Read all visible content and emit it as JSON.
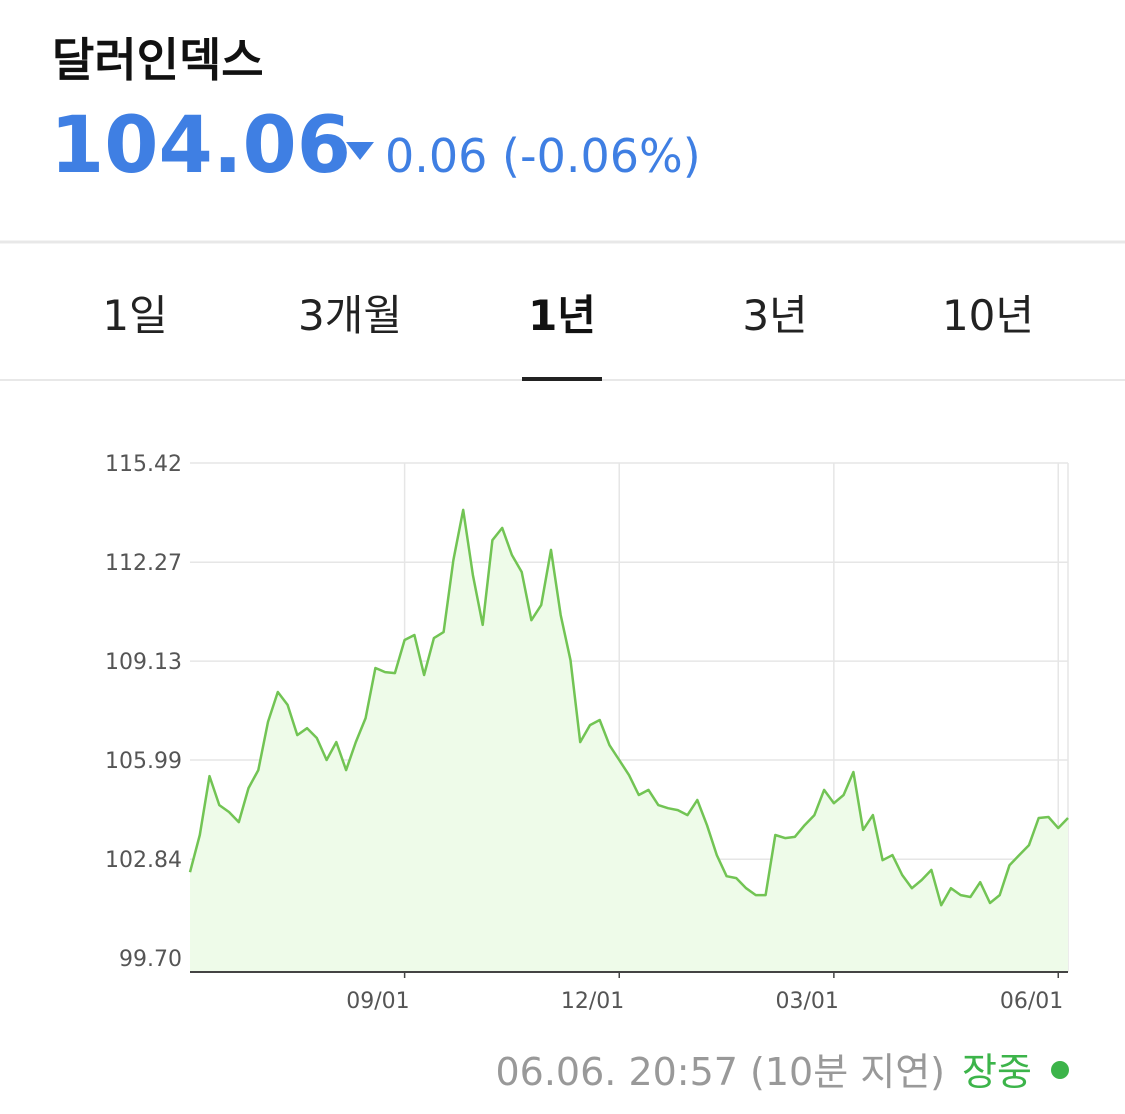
{
  "header": {
    "title": "달러인덱스",
    "price": "104.06",
    "change": "0.06 (-0.06%)"
  },
  "tabs": {
    "items": [
      "1일",
      "3개월",
      "1년",
      "3년",
      "10년"
    ],
    "selected": 2
  },
  "footer": {
    "timestamp": "06.06. 20:57 (10분 지연)",
    "status": "장중"
  },
  "chart_data": {
    "type": "line",
    "color": "#72c454",
    "fill": "#eefbe9",
    "grid": true,
    "ylim": [
      99.26,
      115.42
    ],
    "yticks": [
      {
        "value": 99.7,
        "label": "99.70"
      },
      102.84,
      105.99,
      109.13,
      112.27,
      115.42
    ],
    "categories": [
      null,
      null,
      null,
      null,
      null,
      null,
      null,
      null,
      null,
      null,
      null,
      null,
      null,
      null,
      null,
      null,
      null,
      null,
      null,
      null,
      null,
      null,
      "09/01",
      null,
      null,
      null,
      null,
      null,
      null,
      null,
      null,
      null,
      null,
      null,
      null,
      null,
      null,
      null,
      null,
      null,
      null,
      null,
      null,
      null,
      "12/01",
      null,
      null,
      null,
      null,
      null,
      null,
      null,
      null,
      null,
      null,
      null,
      null,
      null,
      null,
      null,
      null,
      null,
      null,
      null,
      null,
      null,
      "03/01",
      null,
      null,
      null,
      null,
      null,
      null,
      null,
      null,
      null,
      null,
      null,
      null,
      null,
      null,
      null,
      null,
      null,
      null,
      null,
      null,
      null,
      null,
      "06/01",
      null
    ],
    "values": [
      102.43,
      103.61,
      105.48,
      104.56,
      104.34,
      104.02,
      105.1,
      105.67,
      107.2,
      108.15,
      107.74,
      106.78,
      107.0,
      106.69,
      105.99,
      106.56,
      105.67,
      106.56,
      107.32,
      108.91,
      108.78,
      108.75,
      109.8,
      109.96,
      108.69,
      109.86,
      110.05,
      112.34,
      113.93,
      111.86,
      110.28,
      112.97,
      113.36,
      112.5,
      111.96,
      110.43,
      110.91,
      112.66,
      110.59,
      109.16,
      106.56,
      107.1,
      107.26,
      106.46,
      105.99,
      105.51,
      104.88,
      105.04,
      104.56,
      104.46,
      104.4,
      104.24,
      104.72,
      103.92,
      102.97,
      102.3,
      102.24,
      101.92,
      101.7,
      101.7,
      103.61,
      103.51,
      103.55,
      103.92,
      104.24,
      105.04,
      104.62,
      104.88,
      105.61,
      103.77,
      104.24,
      102.81,
      102.97,
      102.34,
      101.92,
      102.18,
      102.5,
      101.38,
      101.92,
      101.7,
      101.64,
      102.11,
      101.45,
      101.7,
      102.65,
      102.97,
      103.29,
      104.15,
      104.18,
      103.83,
      104.15
    ]
  }
}
